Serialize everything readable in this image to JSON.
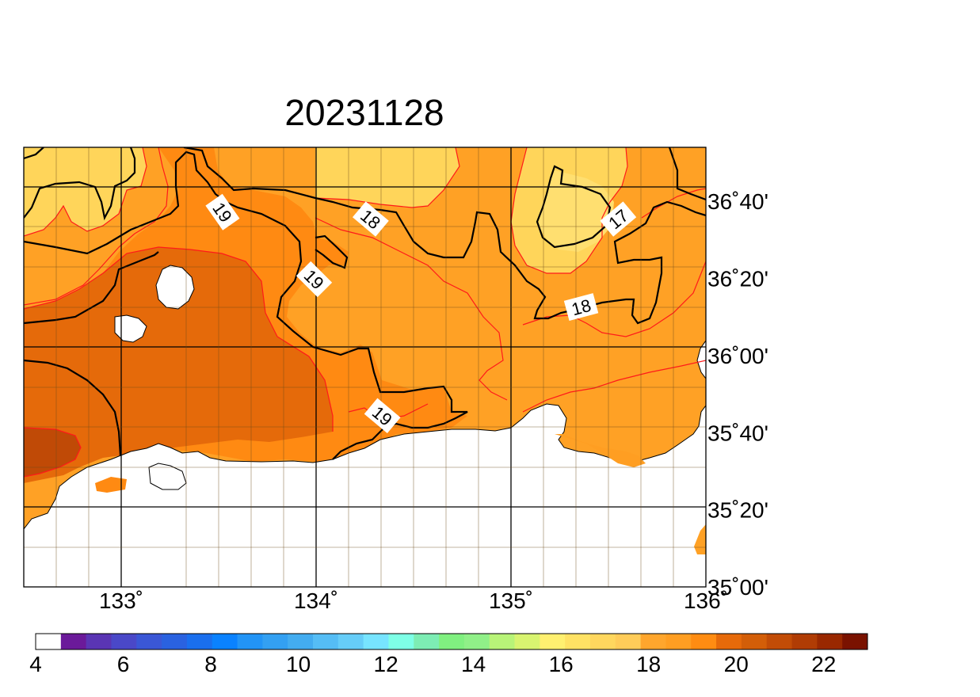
{
  "title": "20231128",
  "x_ticks": [
    {
      "label": "133˚",
      "lon": 133.0
    },
    {
      "label": "134˚",
      "lon": 134.0
    },
    {
      "label": "135˚",
      "lon": 135.0
    },
    {
      "label": "136˚",
      "lon": 136.0
    }
  ],
  "y_ticks": [
    {
      "label": "36˚40'",
      "lat": 36.6667
    },
    {
      "label": "36˚20'",
      "lat": 36.3333
    },
    {
      "label": "36˚00'",
      "lat": 36.0
    },
    {
      "label": "35˚40'",
      "lat": 35.6667
    },
    {
      "label": "35˚20'",
      "lat": 35.3333
    },
    {
      "label": "35˚00'",
      "lat": 35.0
    }
  ],
  "contour_labels": [
    {
      "text": "19",
      "lon": 133.52,
      "lat": 36.62
    },
    {
      "text": "18",
      "lon": 134.28,
      "lat": 36.59
    },
    {
      "text": "17",
      "lon": 135.55,
      "lat": 36.59
    },
    {
      "text": "19",
      "lon": 133.99,
      "lat": 36.33
    },
    {
      "text": "18",
      "lon": 135.36,
      "lat": 36.21
    },
    {
      "text": "19",
      "lon": 134.34,
      "lat": 35.74
    }
  ],
  "colorbar": {
    "min": 4,
    "max": 23,
    "labels": [
      "4",
      "6",
      "8",
      "10",
      "12",
      "14",
      "16",
      "18",
      "20",
      "22"
    ],
    "colors": [
      "#ffffff",
      "#6b1a9a",
      "#5a35b4",
      "#4a48c8",
      "#3a57d6",
      "#2a62e0",
      "#1a6fee",
      "#0a82ff",
      "#2294f6",
      "#33a0f2",
      "#43acf0",
      "#55bdf5",
      "#66cdf8",
      "#77e4ff",
      "#7effe6",
      "#7dedb4",
      "#80f080",
      "#90f088",
      "#b8f478",
      "#d8f470",
      "#fff070",
      "#ffe264",
      "#ffd75e",
      "#ffcc59",
      "#ffa62d",
      "#ff9e22",
      "#ff8c12",
      "#e66a0a",
      "#d35e08",
      "#c24c06",
      "#b03c04",
      "#992800",
      "#7a1200"
    ]
  }
}
